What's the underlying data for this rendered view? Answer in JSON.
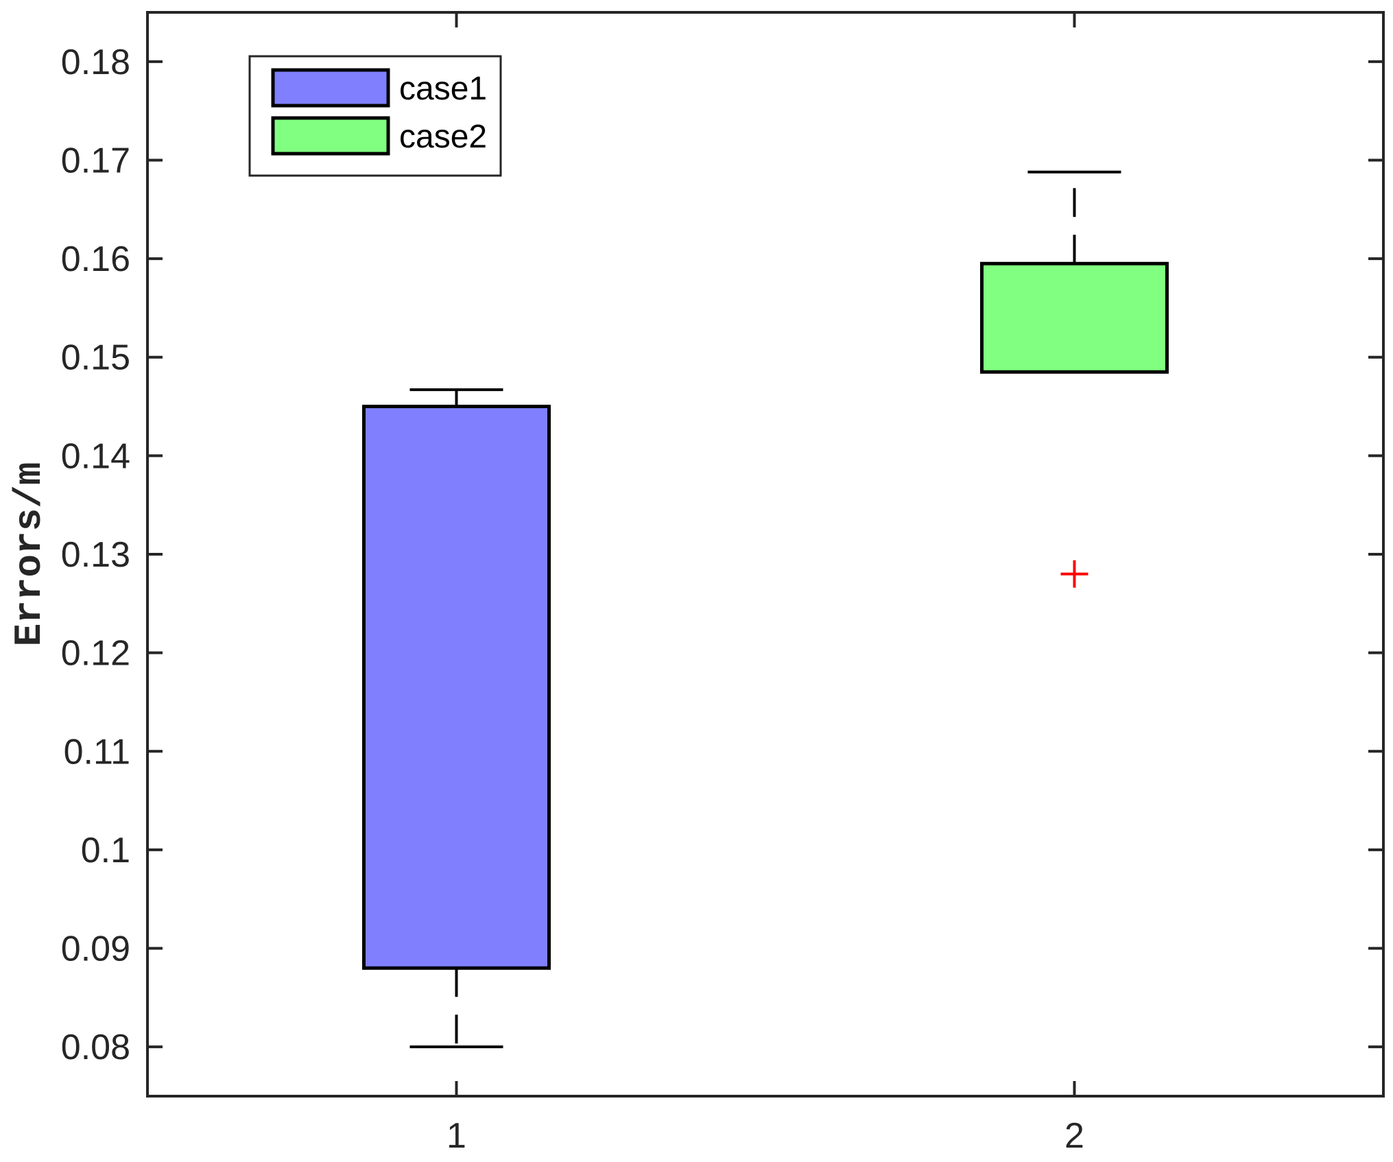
{
  "chart_data": {
    "type": "box",
    "ylabel": "Errors/m",
    "ylim": [
      0.075,
      0.185
    ],
    "yticks": [
      "0.08",
      "0.09",
      "0.1",
      "0.11",
      "0.12",
      "0.13",
      "0.14",
      "0.15",
      "0.16",
      "0.17",
      "0.18"
    ],
    "xticks": [
      "1",
      "2"
    ],
    "xlim": [
      0.5,
      2.5
    ],
    "grid": false,
    "legend_position": "top-left",
    "series": [
      {
        "name": "case1",
        "x": 1,
        "color": "#8080ff",
        "whisker_low": 0.08,
        "q1": 0.088,
        "q3": 0.145,
        "whisker_high": 0.1467,
        "outliers": []
      },
      {
        "name": "case2",
        "x": 2,
        "color": "#80ff80",
        "whisker_low": 0.1485,
        "q1": 0.1485,
        "q3": 0.1595,
        "whisker_high": 0.1688,
        "outliers": [
          0.128
        ]
      }
    ],
    "outlier_color": "#ff0000"
  }
}
